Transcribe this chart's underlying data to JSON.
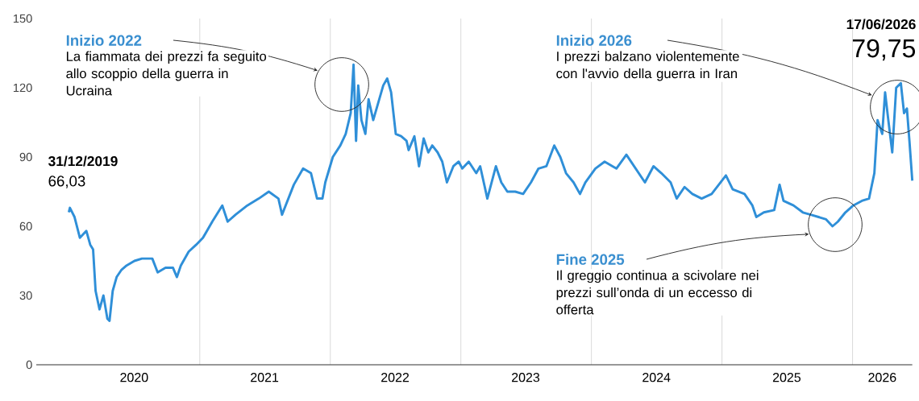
{
  "chart_data": {
    "type": "line",
    "color": "#2f8fd8",
    "x": [
      "2019-12-31",
      "2020-01-03",
      "2020-01-16",
      "2020-01-31",
      "2020-02-18",
      "2020-02-29",
      "2020-03-08",
      "2020-03-15",
      "2020-03-26",
      "2020-04-06",
      "2020-04-17",
      "2020-04-23",
      "2020-05-02",
      "2020-05-13",
      "2020-05-26",
      "2020-06-10",
      "2020-07-02",
      "2020-07-23",
      "2020-08-21",
      "2020-09-05",
      "2020-09-27",
      "2020-10-18",
      "2020-10-29",
      "2020-11-09",
      "2020-12-01",
      "2020-12-22",
      "2021-01-10",
      "2021-02-05",
      "2021-03-05",
      "2021-03-20",
      "2021-04-11",
      "2021-05-14",
      "2021-06-15",
      "2021-07-13",
      "2021-08-09",
      "2021-08-19",
      "2021-09-21",
      "2021-10-17",
      "2021-11-08",
      "2021-11-25",
      "2021-12-10",
      "2021-12-18",
      "2022-01-08",
      "2022-01-29",
      "2022-02-13",
      "2022-02-27",
      "2022-03-07",
      "2022-03-14",
      "2022-03-20",
      "2022-03-29",
      "2022-04-09",
      "2022-04-18",
      "2022-05-01",
      "2022-05-16",
      "2022-05-29",
      "2022-06-09",
      "2022-06-20",
      "2022-07-03",
      "2022-07-18",
      "2022-08-02",
      "2022-08-08",
      "2022-08-24",
      "2022-09-06",
      "2022-09-19",
      "2022-10-02",
      "2022-10-13",
      "2022-10-28",
      "2022-11-10",
      "2022-11-23",
      "2022-12-11",
      "2022-12-26",
      "2023-01-05",
      "2023-01-23",
      "2023-02-13",
      "2023-02-24",
      "2023-03-16",
      "2023-04-09",
      "2023-04-24",
      "2023-05-11",
      "2023-06-02",
      "2023-06-24",
      "2023-07-16",
      "2023-08-06",
      "2023-08-28",
      "2023-09-19",
      "2023-10-06",
      "2023-10-22",
      "2023-11-12",
      "2023-11-30",
      "2023-12-15",
      "2024-01-12",
      "2024-02-07",
      "2024-02-29",
      "2024-03-11",
      "2024-04-08",
      "2024-05-04",
      "2024-05-30",
      "2024-06-23",
      "2024-07-15",
      "2024-08-10",
      "2024-08-27",
      "2024-09-18",
      "2024-10-10",
      "2024-11-05",
      "2024-12-03",
      "2025-01-12",
      "2025-01-31",
      "2025-03-05",
      "2025-03-27",
      "2025-04-07",
      "2025-04-28",
      "2025-05-27",
      "2025-06-11",
      "2025-06-22",
      "2025-07-20",
      "2025-08-15",
      "2025-09-06",
      "2025-09-28",
      "2025-10-19",
      "2025-11-06",
      "2025-11-21",
      "2025-12-12",
      "2026-01-03",
      "2026-01-27",
      "2026-02-16",
      "2026-03-03",
      "2026-03-12",
      "2026-03-25",
      "2026-04-02",
      "2026-04-11",
      "2026-04-22",
      "2026-05-03",
      "2026-05-16",
      "2026-05-25",
      "2026-06-02",
      "2026-06-09",
      "2026-06-17"
    ],
    "values": [
      66.03,
      68,
      64,
      55,
      58,
      52,
      50,
      32,
      24,
      30,
      20,
      19,
      32,
      38,
      41,
      43,
      45,
      46,
      46,
      40,
      42,
      42,
      38,
      43,
      49,
      52,
      55,
      62,
      69,
      62,
      65,
      69,
      72,
      75,
      72,
      65,
      78,
      85,
      83,
      72,
      72,
      79,
      90,
      95,
      100,
      109,
      130,
      97,
      121,
      106,
      100,
      115,
      106,
      114,
      121,
      124,
      118,
      100,
      99,
      97,
      93,
      99,
      86,
      98,
      92,
      95,
      92,
      88,
      79,
      86,
      88,
      85,
      88,
      83,
      86,
      72,
      86,
      79,
      75,
      75,
      74,
      79,
      85,
      86,
      95,
      90,
      83,
      79,
      74,
      79,
      85,
      88,
      86,
      85,
      91,
      85,
      79,
      86,
      83,
      79,
      72,
      77,
      74,
      72,
      74,
      82,
      76,
      74,
      69,
      64,
      66,
      67,
      78,
      71,
      69,
      66,
      65,
      64,
      63,
      60,
      62,
      66,
      69,
      71,
      72,
      83,
      106,
      100,
      118,
      106,
      92,
      120,
      122,
      109,
      111,
      97,
      79.75
    ],
    "xlim": [
      "2019-10-01",
      "2026-06-17"
    ],
    "xticks": [
      {
        "value": "2021-01-01",
        "label": null
      },
      {
        "value": "2022-01-01",
        "label": null
      },
      {
        "value": "2023-01-01",
        "label": null
      },
      {
        "value": "2024-01-01",
        "label": null
      },
      {
        "value": "2025-01-01",
        "label": null
      },
      {
        "value": "2026-01-01",
        "label": null
      },
      {
        "value": "2020-07-01",
        "label": "2020"
      },
      {
        "value": "2021-07-01",
        "label": "2021"
      },
      {
        "value": "2022-07-01",
        "label": "2022"
      },
      {
        "value": "2023-07-01",
        "label": "2023"
      },
      {
        "value": "2024-07-01",
        "label": "2024"
      },
      {
        "value": "2025-07-01",
        "label": "2025"
      },
      {
        "value": "2026-03-25",
        "label": "2026"
      }
    ],
    "ylim": [
      0,
      150
    ],
    "yticks": [
      0,
      30,
      60,
      90,
      120,
      150
    ],
    "grid": "x",
    "annotations": [
      "31/12/2019",
      "66,03",
      "17/06/2026",
      "79,75",
      "Inizio 2022",
      "La fiammata dei prezzi fa seguito allo scoppio della guerra in Ucraina",
      "Inizio 2026",
      "I prezzi balzano violentemente con l'avvio della guerra in Iran",
      "Fine 2025",
      "Il greggio continua a scivolare nei prezzi sull’onda di un eccesso di offerta"
    ]
  }
}
